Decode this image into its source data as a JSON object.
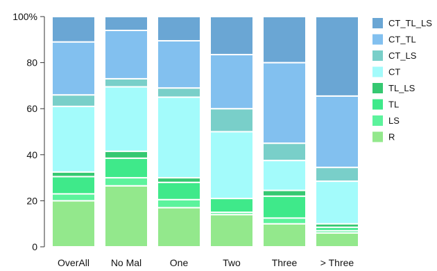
{
  "chart_data": {
    "type": "bar",
    "stacked": true,
    "categories": [
      "OverAll",
      "No Mal",
      "One",
      "Two",
      "Three",
      "> Three"
    ],
    "ylim": [
      0,
      100
    ],
    "y_ticks": [
      "0",
      "20",
      "40",
      "60",
      "80",
      "100%"
    ],
    "legend_position": "right",
    "series": [
      {
        "name": "R",
        "color": "#93e88c",
        "values": [
          20,
          26.5,
          17,
          14,
          10,
          6
        ]
      },
      {
        "name": "LS",
        "color": "#5cf39c",
        "values": [
          3,
          3.5,
          3.5,
          1,
          2.5,
          1
        ]
      },
      {
        "name": "TL",
        "color": "#3fe98a",
        "values": [
          7.5,
          8.5,
          7.5,
          6,
          9.5,
          1.5
        ]
      },
      {
        "name": "TL_LS",
        "color": "#35c871",
        "values": [
          2,
          3,
          2,
          0,
          2.5,
          1.5
        ]
      },
      {
        "name": "CT",
        "color": "#a3fbfb",
        "values": [
          28.5,
          28,
          35,
          29,
          13,
          18.5
        ]
      },
      {
        "name": "CT_LS",
        "color": "#79cfc9",
        "values": [
          5,
          3.5,
          4,
          10,
          7.5,
          6
        ]
      },
      {
        "name": "CT_TL",
        "color": "#82c0ef",
        "values": [
          23,
          21,
          20.5,
          23.5,
          35,
          31
        ]
      },
      {
        "name": "CT_TL_LS",
        "color": "#6aa6d4",
        "values": [
          11,
          6,
          10.5,
          16.5,
          20,
          34.5
        ]
      }
    ]
  }
}
